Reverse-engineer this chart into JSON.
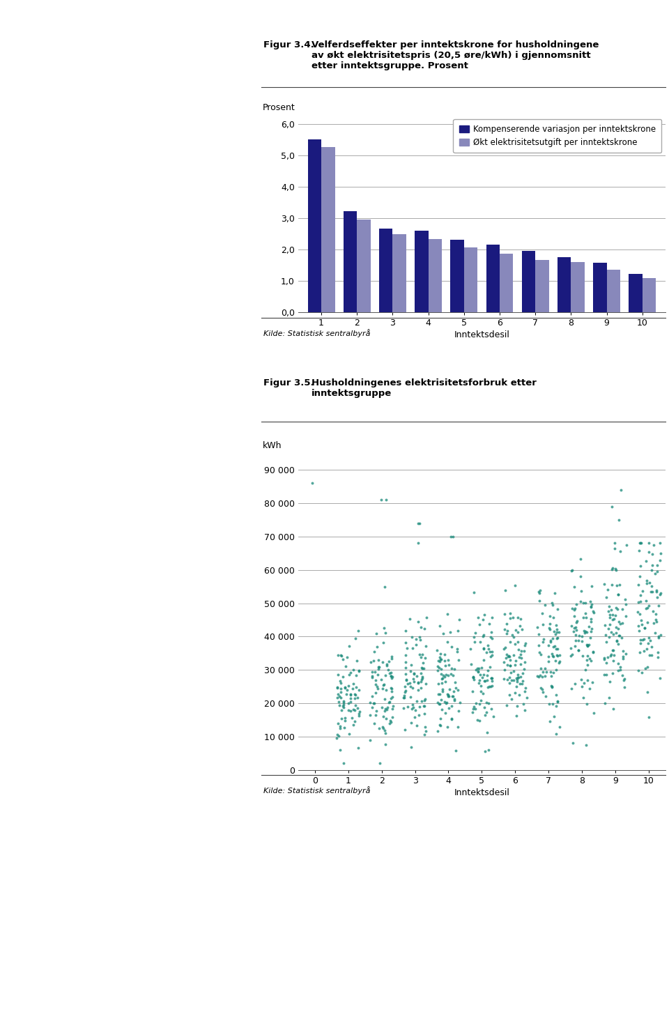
{
  "fig34_title_bold": "Figur 3.4.",
  "fig34_title_text": "Velferdseffekter per inntektskrone for husholdningene\nav økt elektrisitetspris (20,5 øre/kWh) i gjennomsnitt\netter inntektsgruppe. Prosent",
  "fig34_ylabel": "Prosent",
  "fig34_xlabel": "Inntektsdesil",
  "fig34_xticks": [
    1,
    2,
    3,
    4,
    5,
    6,
    7,
    8,
    9,
    10
  ],
  "fig34_yticks": [
    0.0,
    1.0,
    2.0,
    3.0,
    4.0,
    5.0,
    6.0
  ],
  "fig34_ylim": [
    0,
    6.3
  ],
  "fig34_kompenserende": [
    5.52,
    3.22,
    2.68,
    2.6,
    2.31,
    2.15,
    1.97,
    1.76,
    1.57,
    1.22
  ],
  "fig34_okt": [
    5.28,
    2.97,
    2.5,
    2.34,
    2.07,
    1.88,
    1.68,
    1.6,
    1.35,
    1.1
  ],
  "fig34_color_dark": "#1a1a7e",
  "fig34_color_light": "#8888bb",
  "fig34_legend_dark": "Kompenserende variasjon per inntektskrone",
  "fig34_legend_light": "Økt elektrisitetsutgift per inntektskrone",
  "fig34_source": "Kilde: Statistisk sentralbyrå",
  "fig35_title_bold": "Figur 3.5.",
  "fig35_title_text": "Husholdningenes elektrisitetsforbruk etter\ninntektsgruppe",
  "fig35_ylabel": "kWh",
  "fig35_xlabel": "Inntektsdesil",
  "fig35_ylim": [
    0,
    95000
  ],
  "fig35_yticks": [
    0,
    10000,
    20000,
    30000,
    40000,
    50000,
    60000,
    70000,
    80000,
    90000
  ],
  "fig35_ytick_labels": [
    "0",
    "10 000",
    "20 000",
    "30 000",
    "40 000",
    "50 000",
    "60 000",
    "70 000",
    "80 000",
    "90 000"
  ],
  "fig35_xticks": [
    0,
    1,
    2,
    3,
    4,
    5,
    6,
    7,
    8,
    9,
    10
  ],
  "fig35_color": "#1a8a7a",
  "fig35_source": "Kilde: Statistisk sentralbyrå",
  "scatter_seed": 42,
  "scatter_n_per_decile": 80,
  "scatter_means": [
    22000,
    24000,
    26000,
    28000,
    30000,
    32000,
    35000,
    38000,
    42000,
    47000
  ],
  "scatter_stds": [
    8000,
    8000,
    9000,
    9000,
    9000,
    9500,
    10000,
    10500,
    11000,
    12000
  ],
  "scatter_outlier_x": [
    0,
    2,
    3,
    4,
    9,
    9,
    9
  ],
  "scatter_outlier_y": [
    86000,
    81000,
    74000,
    70000,
    84000,
    79000,
    75000
  ]
}
